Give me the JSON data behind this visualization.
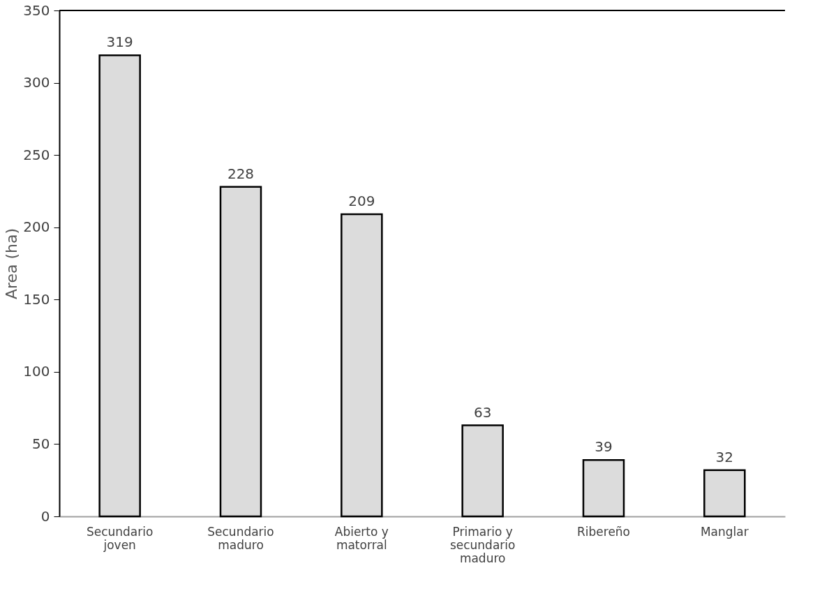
{
  "chart_data": {
    "type": "bar",
    "ylabel": "Area (ha)",
    "categories": [
      "Secundario\njoven",
      "Secundario\nmaduro",
      "Abierto y\nmatorral",
      "Primario y\nsecundario\nmaduro",
      "Ribereño",
      "Manglar"
    ],
    "values": [
      319,
      228,
      209,
      63,
      39,
      32
    ],
    "color": "#dcdcdc",
    "ylim": [
      0,
      350
    ],
    "yticks": [
      0,
      50,
      100,
      150,
      200,
      250,
      300,
      350
    ],
    "grid": false,
    "data_labels": true
  }
}
